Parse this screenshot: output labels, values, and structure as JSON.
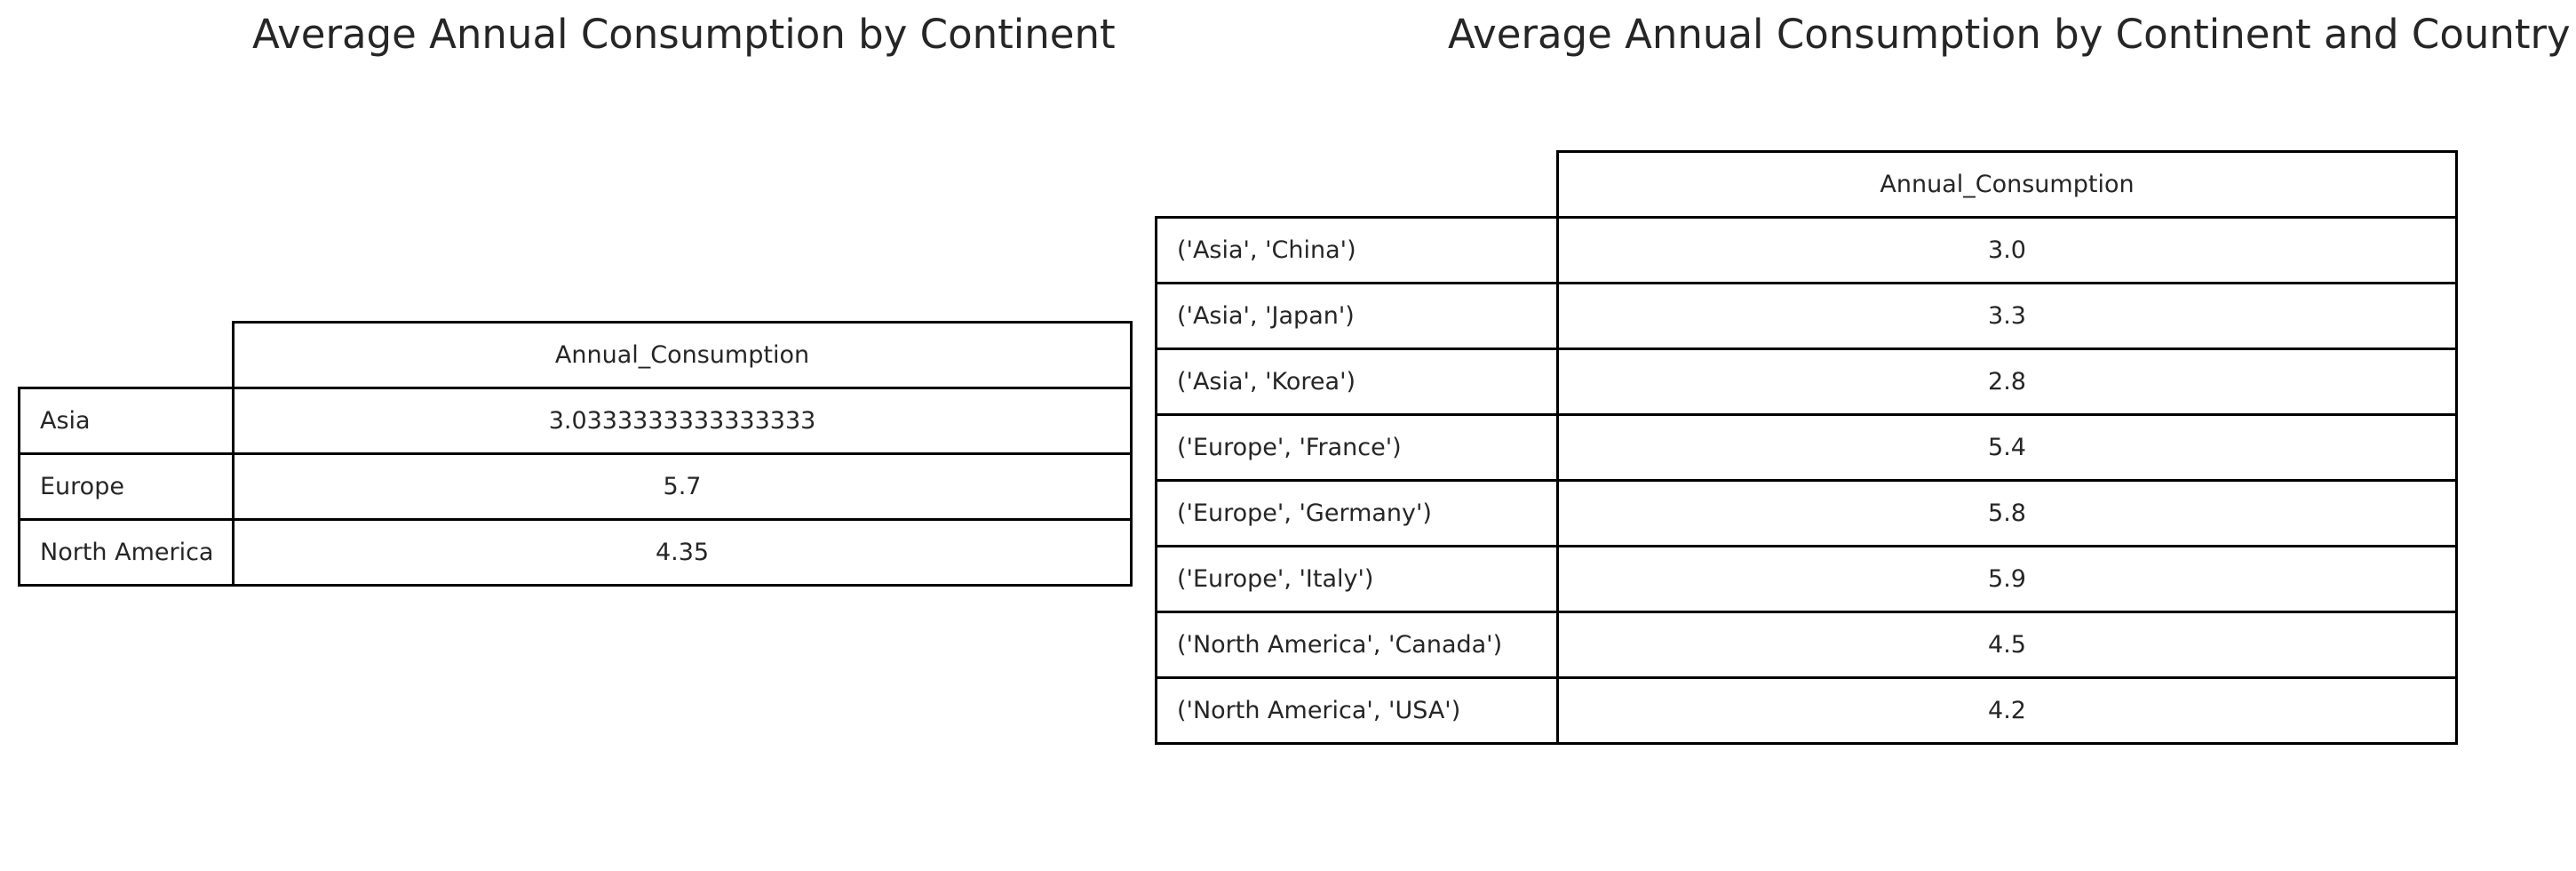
{
  "chart_data": [
    {
      "type": "table",
      "title": "Average Annual Consumption by Continent",
      "columns": [
        "Annual_Consumption"
      ],
      "rows": [
        {
          "index": "Asia",
          "value": "3.0333333333333333"
        },
        {
          "index": "Europe",
          "value": "5.7"
        },
        {
          "index": "North America",
          "value": "4.35"
        }
      ]
    },
    {
      "type": "table",
      "title": "Average Annual Consumption by Continent and Country",
      "columns": [
        "Annual_Consumption"
      ],
      "rows": [
        {
          "index": "('Asia', 'China')",
          "value": "3.0"
        },
        {
          "index": "('Asia', 'Japan')",
          "value": "3.3"
        },
        {
          "index": "('Asia', 'Korea')",
          "value": "2.8"
        },
        {
          "index": "('Europe', 'France')",
          "value": "5.4"
        },
        {
          "index": "('Europe', 'Germany')",
          "value": "5.8"
        },
        {
          "index": "('Europe', 'Italy')",
          "value": "5.9"
        },
        {
          "index": "('North America', 'Canada')",
          "value": "4.5"
        },
        {
          "index": "('North America', 'USA')",
          "value": "4.2"
        }
      ]
    }
  ]
}
